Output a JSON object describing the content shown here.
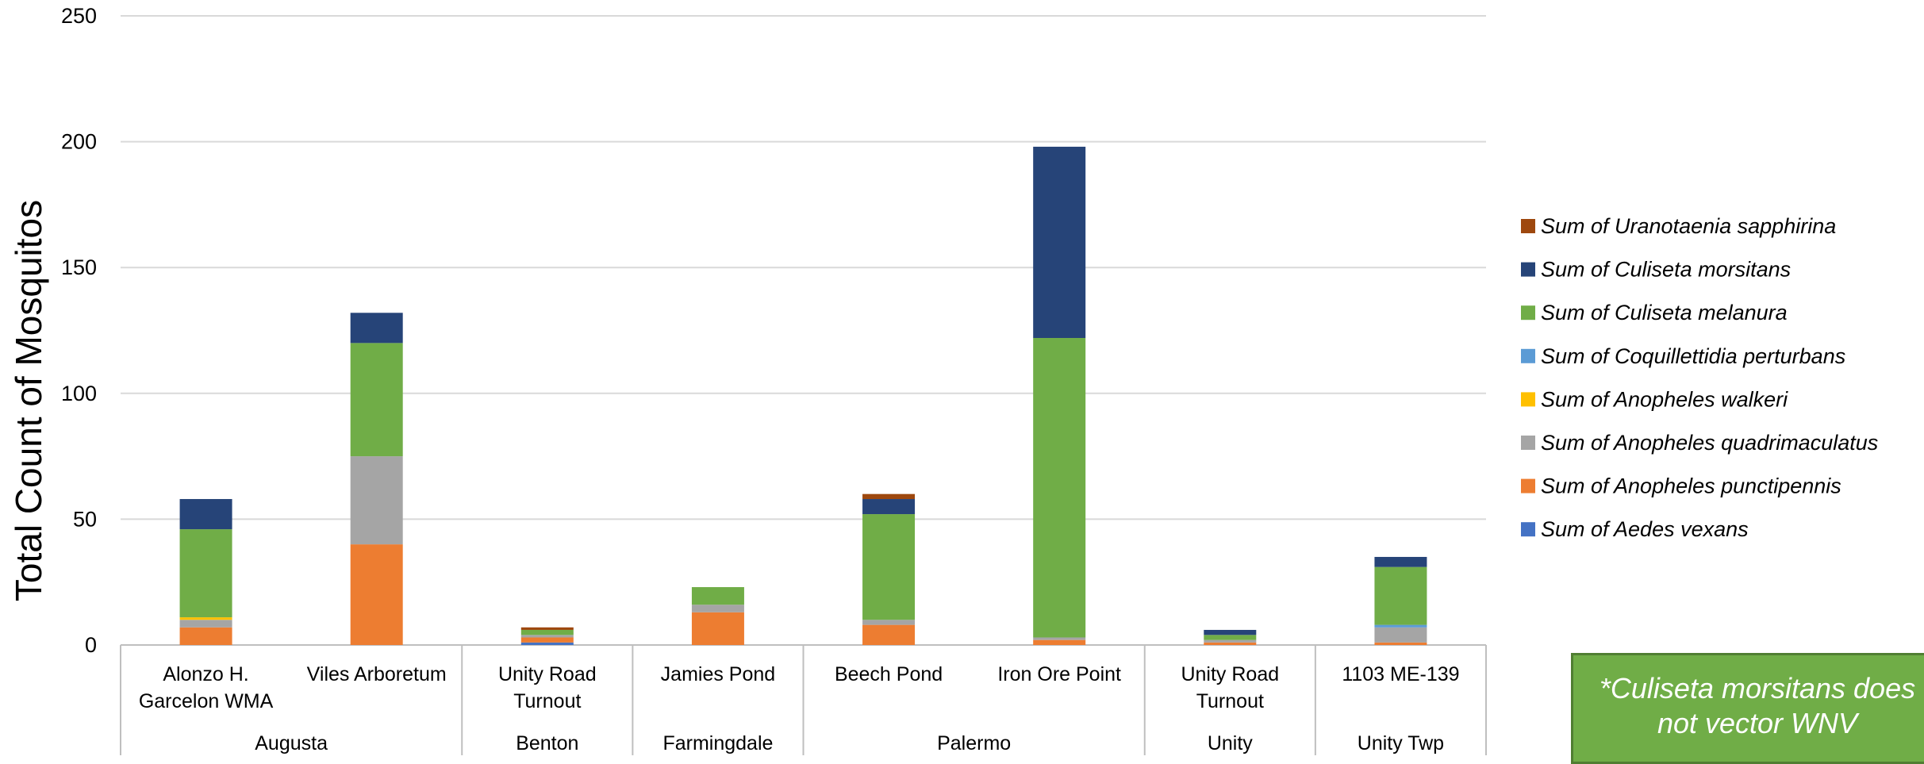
{
  "chart_data": {
    "type": "bar",
    "stacked": true,
    "ylabel": "Total Count of Mosquitos",
    "ylim": [
      0,
      250
    ],
    "yticks": [
      0,
      50,
      100,
      150,
      200,
      250
    ],
    "grid": true,
    "legend_position": "right",
    "categories": [
      {
        "label_lines": [
          "Alonzo H.",
          "Garcelon WMA"
        ],
        "group": "Augusta"
      },
      {
        "label_lines": [
          "Viles Arboretum"
        ],
        "group": "Augusta"
      },
      {
        "label_lines": [
          "Unity Road",
          "Turnout"
        ],
        "group": "Benton"
      },
      {
        "label_lines": [
          "Jamies Pond"
        ],
        "group": "Farmingdale"
      },
      {
        "label_lines": [
          "Beech Pond"
        ],
        "group": "Palermo"
      },
      {
        "label_lines": [
          "Iron Ore Point"
        ],
        "group": "Palermo"
      },
      {
        "label_lines": [
          "Unity Road",
          "Turnout"
        ],
        "group": "Unity"
      },
      {
        "label_lines": [
          "1103 ME-139"
        ],
        "group": "Unity Twp"
      }
    ],
    "groups": [
      {
        "name": "Augusta",
        "span": 2
      },
      {
        "name": "Benton",
        "span": 1
      },
      {
        "name": "Farmingdale",
        "span": 1
      },
      {
        "name": "Palermo",
        "span": 2
      },
      {
        "name": "Unity",
        "span": 1
      },
      {
        "name": "Unity Twp",
        "span": 1
      }
    ],
    "series": [
      {
        "name": "Sum of Aedes vexans",
        "color": "#4472c4",
        "values": [
          0,
          0,
          1,
          0,
          0,
          0,
          0,
          0
        ]
      },
      {
        "name": "Sum of Anopheles punctipennis",
        "color": "#ed7d31",
        "values": [
          7,
          40,
          2,
          13,
          8,
          2,
          1,
          1
        ]
      },
      {
        "name": "Sum of Anopheles quadrimaculatus",
        "color": "#a5a5a5",
        "values": [
          3,
          35,
          1,
          3,
          2,
          1,
          1,
          6
        ]
      },
      {
        "name": "Sum of Anopheles walkeri",
        "color": "#ffc000",
        "values": [
          1,
          0,
          0,
          0,
          0,
          0,
          0,
          0
        ]
      },
      {
        "name": "Sum of Coquillettidia perturbans",
        "color": "#5b9bd5",
        "values": [
          0,
          0,
          0,
          0,
          0,
          0,
          0,
          1
        ]
      },
      {
        "name": "Sum of Culiseta melanura",
        "color": "#70ad47",
        "values": [
          35,
          45,
          2,
          7,
          42,
          119,
          2,
          23
        ]
      },
      {
        "name": "Sum of Culiseta morsitans",
        "color": "#264478",
        "values": [
          12,
          12,
          0,
          0,
          6,
          76,
          2,
          4
        ]
      },
      {
        "name": "Sum of Uranotaenia sapphirina",
        "color": "#9e480e",
        "values": [
          0,
          0,
          1,
          0,
          2,
          0,
          0,
          0
        ]
      }
    ]
  },
  "note": {
    "line1": "*Culiseta morsitans does",
    "line2": "not vector WNV"
  }
}
